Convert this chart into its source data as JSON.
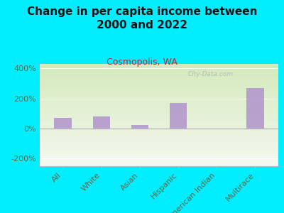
{
  "title": "Change in per capita income between\n2000 and 2022",
  "subtitle": "Cosmopolis, WA",
  "categories": [
    "All",
    "White",
    "Asian",
    "Hispanic",
    "American Indian",
    "Multirace"
  ],
  "values": [
    70,
    80,
    25,
    170,
    0,
    270
  ],
  "bar_color": "#b399cc",
  "bar_alpha": 0.9,
  "ylim": [
    -250,
    430
  ],
  "yticks": [
    -200,
    0,
    200,
    400
  ],
  "ytick_labels": [
    "-200%",
    "0%",
    "200%",
    "400%"
  ],
  "background_outer": "#00eeff",
  "grad_top": "#f5f8f0",
  "grad_bottom": "#d4eabc",
  "title_color": "#111111",
  "subtitle_color": "#aa3333",
  "axis_label_color": "#666644",
  "watermark": "City-Data.com",
  "title_fontsize": 11,
  "subtitle_fontsize": 9,
  "tick_fontsize": 8,
  "bar_width": 0.45
}
